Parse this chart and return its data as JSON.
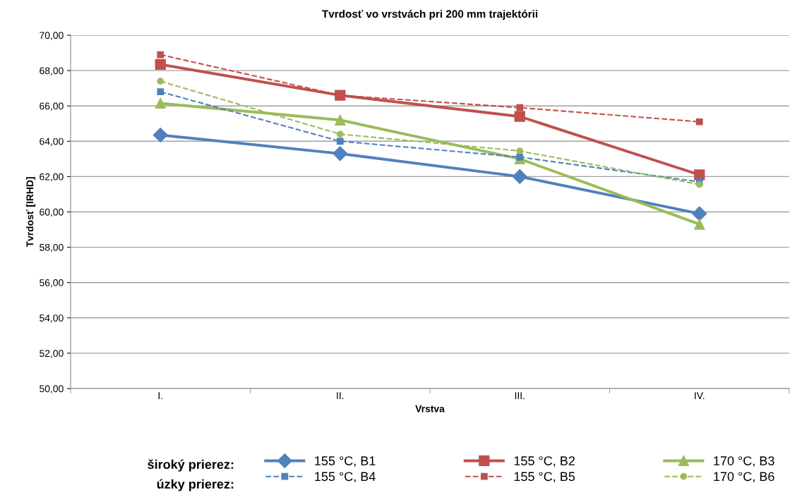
{
  "chart_data": {
    "type": "line",
    "title": "Tvrdosť vo vrstvách pri 200 mm trajektórii",
    "xlabel": "Vrstva",
    "ylabel": "Tvrdosť [IRHD]",
    "categories": [
      "I.",
      "II.",
      "III.",
      "IV."
    ],
    "ylim": [
      50,
      70
    ],
    "yticks": [
      {
        "value": 50,
        "label": "50,00"
      },
      {
        "value": 52,
        "label": "52,00"
      },
      {
        "value": 54,
        "label": "54,00"
      },
      {
        "value": 56,
        "label": "56,00"
      },
      {
        "value": 58,
        "label": "58,00"
      },
      {
        "value": 60,
        "label": "60,00"
      },
      {
        "value": 62,
        "label": "62,00"
      },
      {
        "value": 64,
        "label": "64,00"
      },
      {
        "value": 66,
        "label": "66,00"
      },
      {
        "value": 68,
        "label": "68,00"
      },
      {
        "value": 70,
        "label": "70,00"
      }
    ],
    "grid": "y",
    "legend": "bottom",
    "annotations": [
      "široký prierez:",
      "úzky prierez:"
    ],
    "series": [
      {
        "name": "155 °C, B1",
        "color": "#4f81bd",
        "marker": "diamond",
        "line_style": "solid",
        "values": [
          64.35,
          63.3,
          62.0,
          59.9
        ]
      },
      {
        "name": "155 °C, B2",
        "color": "#c0504d",
        "marker": "square",
        "line_style": "solid",
        "values": [
          68.35,
          66.6,
          65.4,
          62.1
        ]
      },
      {
        "name": "170 °C, B3",
        "color": "#9bbb59",
        "marker": "triangle",
        "line_style": "solid",
        "values": [
          66.15,
          65.2,
          63.0,
          59.3
        ]
      },
      {
        "name": "155 °C, B4",
        "color": "#4f81bd",
        "marker": "square",
        "line_style": "dashed",
        "values": [
          66.8,
          64.0,
          63.1,
          61.7
        ]
      },
      {
        "name": "155 °C, B5",
        "color": "#c0504d",
        "marker": "square",
        "line_style": "dashed",
        "values": [
          68.9,
          66.6,
          65.9,
          65.1
        ]
      },
      {
        "name": "170 °C, B6",
        "color": "#9bbb59",
        "marker": "circle",
        "line_style": "dashed",
        "values": [
          67.4,
          64.4,
          63.45,
          61.55
        ]
      }
    ]
  }
}
